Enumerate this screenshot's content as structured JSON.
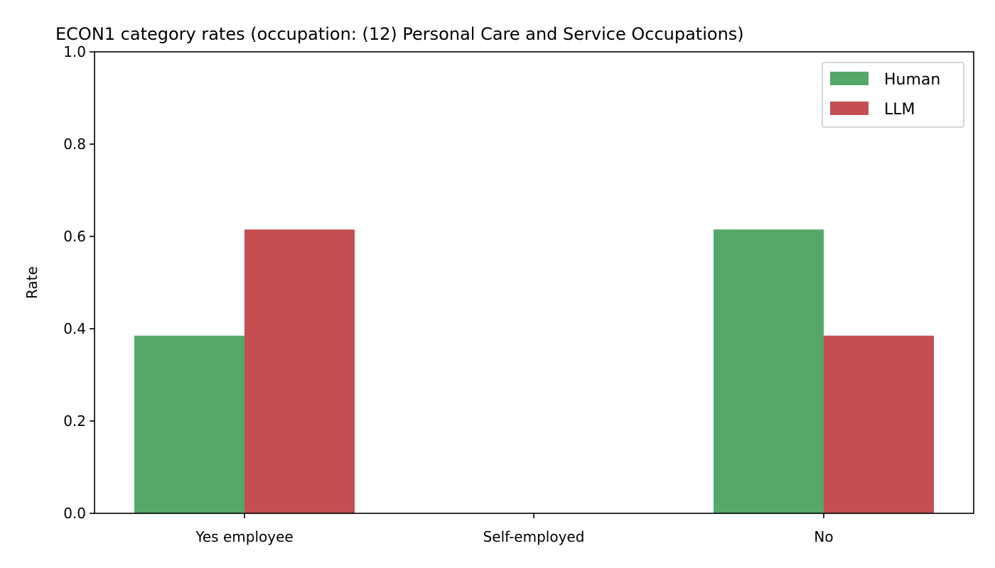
{
  "chart_data": {
    "type": "bar",
    "title": "ECON1 category rates (occupation: (12) Personal Care and Service Occupations)",
    "xlabel": "",
    "ylabel": "Rate",
    "ylim": [
      0,
      1.0
    ],
    "yticks": [
      "0.0",
      "0.2",
      "0.4",
      "0.6",
      "0.8",
      "1.0"
    ],
    "categories": [
      "Yes employee",
      "Self-employed",
      "No"
    ],
    "series": [
      {
        "name": "Human",
        "color": "#55a868",
        "values": [
          0.385,
          0.0,
          0.615
        ]
      },
      {
        "name": "LLM",
        "color": "#c44e52",
        "values": [
          0.615,
          0.0,
          0.385
        ]
      }
    ],
    "grid": false,
    "legend": "top-right"
  }
}
